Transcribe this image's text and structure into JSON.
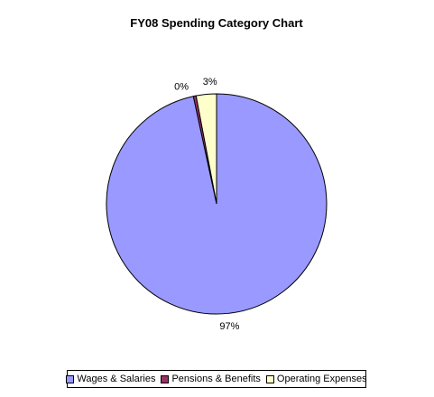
{
  "chart_data": {
    "type": "pie",
    "title": "FY08 Spending Category Chart",
    "categories": [
      "Wages & Salaries",
      "Pensions & Benefits",
      "Operating Expenses"
    ],
    "values": [
      97,
      0.4,
      3
    ],
    "labels": [
      "97%",
      "0%",
      "3%"
    ],
    "colors": [
      "#9999ff",
      "#993366",
      "#ffffcc"
    ],
    "legend_position": "bottom"
  }
}
